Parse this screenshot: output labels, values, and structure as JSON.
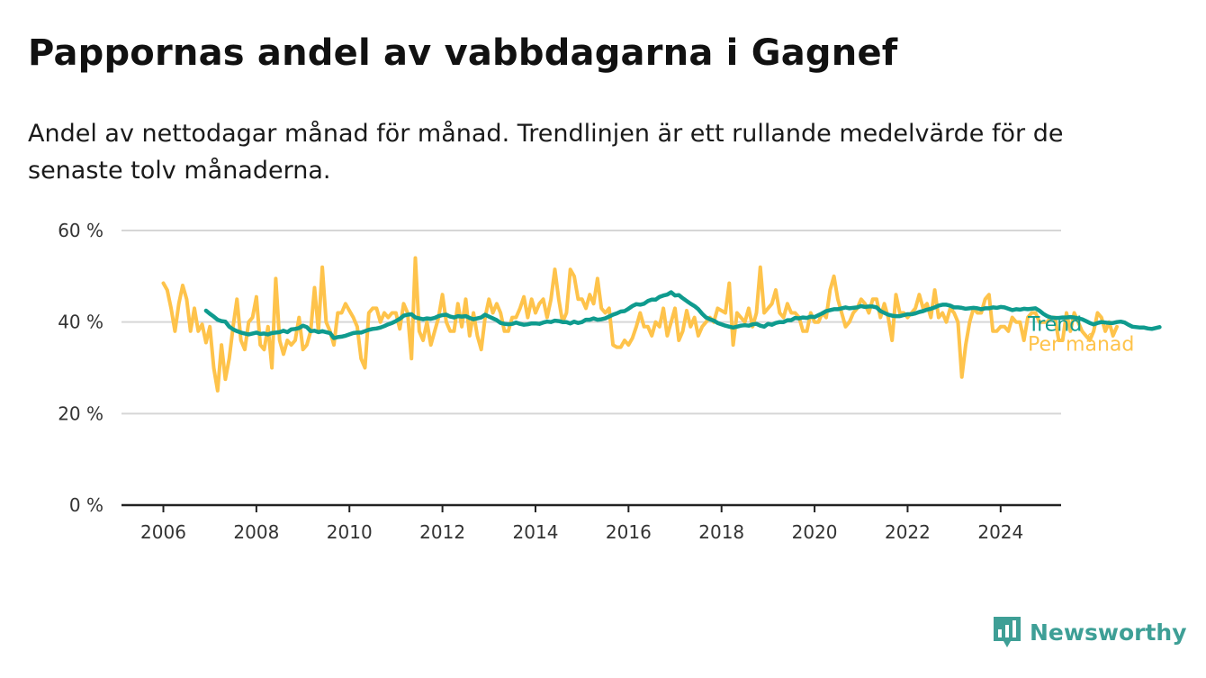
{
  "header": {
    "title": "Pappornas andel av vabbdagarna i Gagnef",
    "subtitle": "Andel av nettodagar månad för månad. Trendlinjen är ett rullande medelvärde för de senaste tolv månaderna."
  },
  "brand": {
    "name": "Newsworthy",
    "icon": "newsworthy-logo-icon",
    "color": "#3e9f96"
  },
  "chart_data": {
    "type": "line",
    "x_ticks": [
      "2006",
      "2008",
      "2010",
      "2012",
      "2014",
      "2016",
      "2018",
      "2020",
      "2022",
      "2024"
    ],
    "y_ticks": [
      "0 %",
      "20 %",
      "40 %",
      "60 %"
    ],
    "ylim": [
      0,
      60
    ],
    "xlim": [
      2005.1,
      2025.3
    ],
    "grid": true,
    "series": [
      {
        "name": "Per månad",
        "color": "#fec34b",
        "start": "2006-01",
        "step": "month",
        "values": [
          48.5,
          47,
          43,
          38,
          44,
          48,
          45,
          38,
          43,
          38,
          39.5,
          35.5,
          39,
          30,
          25,
          35,
          27.5,
          32,
          39,
          45,
          36,
          34,
          40,
          41,
          45.5,
          35,
          34,
          39,
          30,
          49.5,
          36,
          33,
          36,
          35,
          36,
          41,
          34,
          35,
          38,
          47.5,
          38,
          52,
          40,
          38,
          35,
          42,
          42,
          44,
          42.5,
          41,
          39,
          32,
          30,
          42,
          43,
          43,
          40,
          42,
          41,
          42,
          42,
          38.5,
          44,
          42,
          32,
          54,
          38,
          36,
          40,
          35,
          38,
          41,
          46,
          40,
          38,
          38,
          44,
          39,
          45,
          37,
          42,
          37,
          34,
          41,
          45,
          42,
          44,
          42,
          38,
          38,
          41,
          41,
          43,
          45.5,
          41,
          45,
          42,
          44,
          45,
          41,
          45,
          51.5,
          45,
          40,
          42,
          51.5,
          50,
          45,
          45,
          43,
          46,
          44,
          49.5,
          43,
          42,
          43,
          35,
          34.5,
          34.5,
          36,
          35,
          36.5,
          39,
          42,
          39,
          39,
          37,
          40,
          39,
          43,
          37,
          40,
          43,
          36,
          38,
          42.5,
          39,
          41,
          37,
          39,
          40,
          41,
          40,
          43,
          42.5,
          42,
          48.5,
          35,
          42,
          41,
          40,
          43,
          39,
          42,
          52,
          42,
          43,
          44,
          47,
          42,
          41,
          44,
          42,
          42,
          41,
          38,
          38,
          42,
          40,
          40,
          42,
          41,
          47,
          50,
          45,
          42,
          39,
          40,
          42,
          43,
          45,
          44,
          42,
          45,
          45,
          41,
          44,
          41,
          36,
          46,
          42,
          42,
          41,
          42,
          43,
          46,
          43,
          44,
          41,
          47,
          41,
          42,
          40,
          43,
          42,
          40,
          28,
          35,
          40,
          43,
          42,
          42,
          45,
          46,
          38,
          38,
          39,
          39,
          38,
          41,
          40,
          40,
          36,
          41,
          42,
          42,
          40,
          40,
          40,
          41,
          41,
          36,
          36,
          42,
          38,
          42,
          40,
          38,
          37,
          36,
          38,
          42,
          41,
          38,
          40,
          37,
          39
        ]
      },
      {
        "name": "Trend",
        "color": "#0f9b8e",
        "start": "2006-12",
        "step": "month",
        "values": [
          42.5,
          41.8,
          41.2,
          40.5,
          40.2,
          40.1,
          39.0,
          38.4,
          38.0,
          37.7,
          37.5,
          37.3,
          37.5,
          37.7,
          37.4,
          37.5,
          37.3,
          37.6,
          37.7,
          37.8,
          38.1,
          37.8,
          38.4,
          38.5,
          38.7,
          39.2,
          38.9,
          38.0,
          38.1,
          37.8,
          38.0,
          37.8,
          37.6,
          36.5,
          36.7,
          36.8,
          37.0,
          37.3,
          37.6,
          37.7,
          37.7,
          38.0,
          38.3,
          38.5,
          38.6,
          38.8,
          39.1,
          39.5,
          39.8,
          40.2,
          40.7,
          41.4,
          41.6,
          41.7,
          41.0,
          40.8,
          40.6,
          40.8,
          40.7,
          40.9,
          41.3,
          41.5,
          41.6,
          41.2,
          41.0,
          41.3,
          41.2,
          41.3,
          40.9,
          40.6,
          40.8,
          41.0,
          41.6,
          41.2,
          40.8,
          40.4,
          39.8,
          39.6,
          39.5,
          39.6,
          39.9,
          39.6,
          39.4,
          39.5,
          39.7,
          39.7,
          39.6,
          39.9,
          40.1,
          40.0,
          40.3,
          40.2,
          40.0,
          40.0,
          39.7,
          40.1,
          39.8,
          40.0,
          40.5,
          40.5,
          40.8,
          40.5,
          40.6,
          40.8,
          41.2,
          41.6,
          41.9,
          42.3,
          42.4,
          42.9,
          43.5,
          43.9,
          43.8,
          44.0,
          44.6,
          44.9,
          44.9,
          45.5,
          45.8,
          46.0,
          46.5,
          45.8,
          45.9,
          45.2,
          44.6,
          44.0,
          43.5,
          42.8,
          41.8,
          41.0,
          40.6,
          40.3,
          39.8,
          39.5,
          39.2,
          39.0,
          38.8,
          39.0,
          39.2,
          39.3,
          39.2,
          39.5,
          39.6,
          39.2,
          39.0,
          39.6,
          39.4,
          39.8,
          40.0,
          40.0,
          40.4,
          40.4,
          40.9,
          40.8,
          41.0,
          40.9,
          41.2,
          41.1,
          41.5,
          41.9,
          42.4,
          42.6,
          42.8,
          42.8,
          43.0,
          43.2,
          43.0,
          43.1,
          43.2,
          43.5,
          43.3,
          43.4,
          43.4,
          43.2,
          42.4,
          42.0,
          41.6,
          41.4,
          41.3,
          41.3,
          41.5,
          41.7,
          41.7,
          41.9,
          42.2,
          42.4,
          42.7,
          42.9,
          43.2,
          43.6,
          43.8,
          43.8,
          43.6,
          43.2,
          43.2,
          43.1,
          42.9,
          43.0,
          43.1,
          43.0,
          42.8,
          43.0,
          43.0,
          43.2,
          43.1,
          43.3,
          43.2,
          42.9,
          42.6,
          42.8,
          42.7,
          42.9,
          42.8,
          42.9,
          43.0,
          42.5,
          41.8,
          41.3,
          41.0,
          40.9,
          40.9,
          41.0,
          41.0,
          41.1,
          41.0,
          40.8,
          40.6,
          40.2,
          39.8,
          39.5,
          39.8,
          40.0,
          39.9,
          39.8,
          39.8,
          40.0,
          40.1,
          39.9,
          39.4,
          39.0,
          38.9,
          38.8,
          38.8,
          38.6,
          38.5,
          38.7,
          38.9
        ]
      }
    ]
  }
}
